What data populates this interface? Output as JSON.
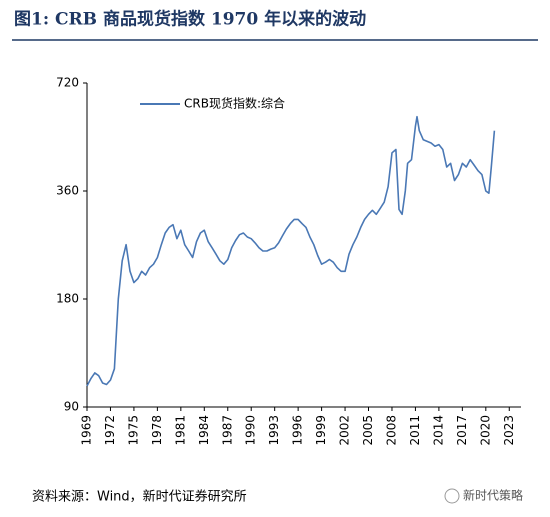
{
  "chart_data": {
    "type": "line",
    "title": "图1:   CRB 商品现货指数 1970 年以来的波动",
    "source": "资料来源：Wind，新时代证券研究所",
    "watermark": "新时代策略",
    "log_scale": true,
    "grid": false,
    "legend": "top-left",
    "xlim": [
      1969,
      2024.5
    ],
    "xticks": [
      1969,
      1972,
      1975,
      1978,
      1981,
      1984,
      1987,
      1990,
      1993,
      1996,
      1999,
      2002,
      2005,
      2008,
      2011,
      2014,
      2017,
      2020,
      2023
    ],
    "ylim": [
      90,
      720
    ],
    "yticks": [
      90,
      180,
      360,
      720
    ],
    "x": [
      1969,
      1969.5,
      1970,
      1970.5,
      1971,
      1971.5,
      1972,
      1972.5,
      1973,
      1973.5,
      1974,
      1974.5,
      1975,
      1975.5,
      1976,
      1976.5,
      1977,
      1977.5,
      1978,
      1978.5,
      1979,
      1979.5,
      1980,
      1980.5,
      1981,
      1981.5,
      1982,
      1982.5,
      1983,
      1983.5,
      1984,
      1984.5,
      1985,
      1985.5,
      1986,
      1986.5,
      1987,
      1987.5,
      1988,
      1988.5,
      1989,
      1989.5,
      1990,
      1990.5,
      1991,
      1991.5,
      1992,
      1992.5,
      1993,
      1993.5,
      1994,
      1994.5,
      1995,
      1995.5,
      1996,
      1996.5,
      1997,
      1997.5,
      1998,
      1998.5,
      1999,
      1999.5,
      2000,
      2000.5,
      2001,
      2001.5,
      2002,
      2002.5,
      2003,
      2003.5,
      2004,
      2004.5,
      2005,
      2005.5,
      2006,
      2006.5,
      2007,
      2007.5,
      2008,
      2008.5,
      2008.9,
      2009.3,
      2009.7,
      2010,
      2010.5,
      2011,
      2011.2,
      2011.5,
      2012,
      2012.5,
      2013,
      2013.5,
      2014,
      2014.5,
      2015,
      2015.5,
      2016,
      2016.5,
      2017,
      2017.5,
      2018,
      2018.5,
      2019,
      2019.5,
      2020,
      2020.4,
      2020.7,
      2021.1
    ],
    "series": [
      {
        "name": "CRB现货指数:综合",
        "color": "#4a78b5",
        "values": [
          103,
          108,
          112,
          110,
          105,
          104,
          107,
          115,
          180,
          230,
          255,
          215,
          200,
          205,
          215,
          210,
          220,
          225,
          235,
          255,
          275,
          285,
          290,
          265,
          280,
          255,
          245,
          235,
          260,
          275,
          280,
          260,
          250,
          240,
          230,
          225,
          232,
          250,
          262,
          272,
          275,
          268,
          265,
          258,
          250,
          245,
          245,
          248,
          250,
          258,
          270,
          282,
          292,
          300,
          300,
          292,
          285,
          268,
          255,
          238,
          225,
          228,
          232,
          228,
          220,
          215,
          215,
          240,
          255,
          268,
          285,
          300,
          310,
          318,
          310,
          322,
          335,
          370,
          460,
          470,
          320,
          310,
          360,
          430,
          440,
          545,
          580,
          530,
          500,
          495,
          490,
          480,
          485,
          470,
          420,
          430,
          385,
          400,
          430,
          420,
          440,
          425,
          410,
          400,
          360,
          355,
          420,
          530
        ]
      }
    ]
  }
}
